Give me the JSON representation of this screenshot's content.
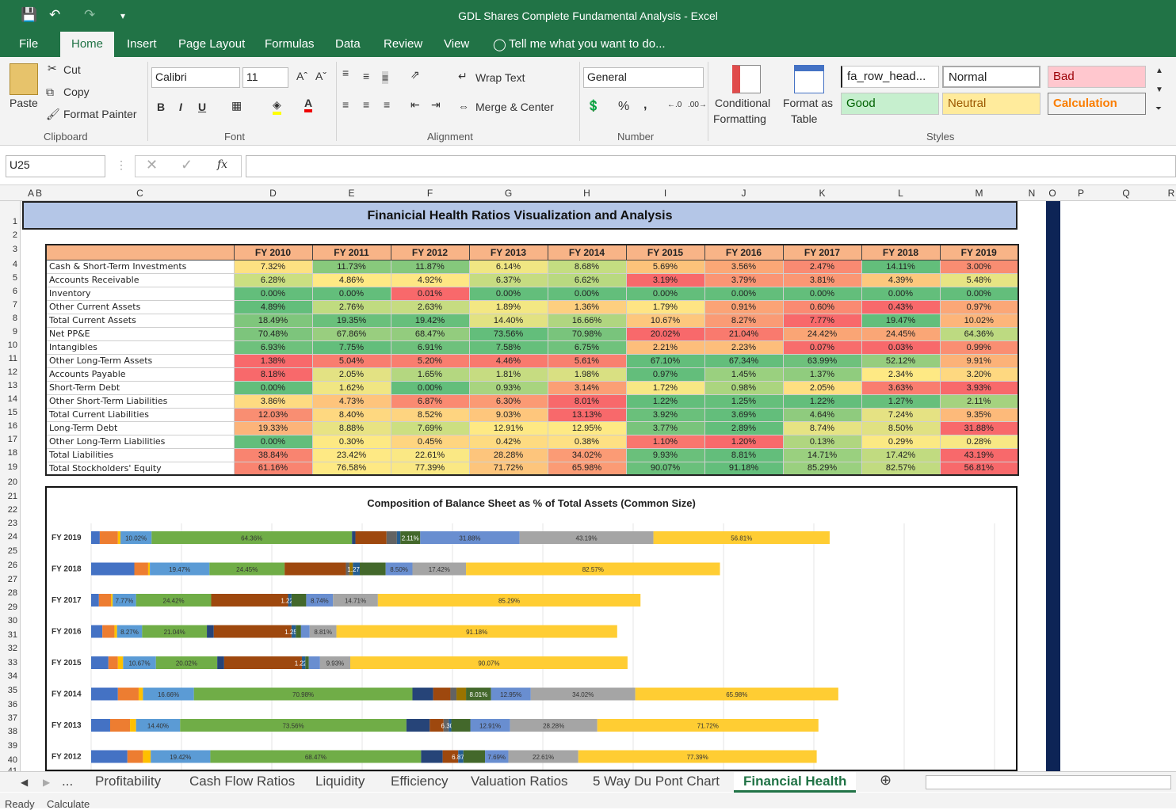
{
  "title": "GDL Shares Complete Fundamental Analysis - Excel",
  "ribbon_tabs": [
    "File",
    "Home",
    "Insert",
    "Page Layout",
    "Formulas",
    "Data",
    "Review",
    "View"
  ],
  "tell_me": "Tell me what you want to do...",
  "clipboard": {
    "paste": "Paste",
    "cut": "Cut",
    "copy": "Copy",
    "format_painter": "Format Painter",
    "group": "Clipboard"
  },
  "font": {
    "name": "Calibri",
    "size": "11",
    "bold": "B",
    "italic": "I",
    "underline": "U",
    "group": "Font"
  },
  "alignment": {
    "wrap": "Wrap Text",
    "merge": "Merge & Center",
    "group": "Alignment"
  },
  "number": {
    "format": "General",
    "percent": "%",
    "comma": ",",
    "group": "Number"
  },
  "styles": {
    "conditional": "Conditional",
    "formatting": "Formatting",
    "format_as": "Format as",
    "table": "Table",
    "cells": [
      "fa_row_head...",
      "Normal",
      "Bad",
      "Good",
      "Neutral",
      "Calculation"
    ],
    "group": "Styles"
  },
  "name_box": "U25",
  "fx": "fx",
  "columns": [
    "A",
    "B",
    "C",
    "D",
    "E",
    "F",
    "G",
    "H",
    "I",
    "J",
    "K",
    "L",
    "M",
    "N",
    "O",
    "P",
    "Q",
    "R"
  ],
  "rows": [
    "1",
    "2",
    "3",
    "4",
    "5",
    "6",
    "7",
    "8",
    "9",
    "10",
    "11",
    "12",
    "13",
    "14",
    "15",
    "16",
    "17",
    "18",
    "19",
    "20",
    "21",
    "22",
    "23",
    "24",
    "25",
    "26",
    "27",
    "28",
    "29",
    "30",
    "31",
    "32",
    "33",
    "34",
    "35",
    "36",
    "37",
    "38",
    "39",
    "40",
    "41"
  ],
  "sheet_title": "Finanicial Health Ratios Visualization and Analysis",
  "table": {
    "years": [
      "FY 2010",
      "FY 2011",
      "FY 2012",
      "FY 2013",
      "FY 2014",
      "FY 2015",
      "FY 2016",
      "FY 2017",
      "FY 2018",
      "FY 2019"
    ],
    "rows": [
      {
        "label": "Cash & Short-Term Investments",
        "values": [
          "7.32%",
          "11.73%",
          "11.87%",
          "6.14%",
          "8.68%",
          "5.69%",
          "3.56%",
          "2.47%",
          "14.11%",
          "3.00%"
        ],
        "colors": [
          "#fde182",
          "#88c97c",
          "#85c87c",
          "#f0e683",
          "#c4dd81",
          "#fcc37a",
          "#fba776",
          "#f98a72",
          "#63be7b",
          "#f98d72"
        ]
      },
      {
        "label": "Accounts Receivable",
        "values": [
          "6.28%",
          "4.86%",
          "4.92%",
          "6.37%",
          "6.62%",
          "3.19%",
          "3.79%",
          "3.81%",
          "4.39%",
          "5.48%"
        ],
        "colors": [
          "#cbdf81",
          "#ffe984",
          "#fee784",
          "#c6dc81",
          "#b9d980",
          "#f8696b",
          "#fa9574",
          "#fa9774",
          "#fdc87d",
          "#e7e483"
        ]
      },
      {
        "label": "Inventory",
        "values": [
          "0.00%",
          "0.00%",
          "0.01%",
          "0.00%",
          "0.00%",
          "0.00%",
          "0.00%",
          "0.00%",
          "0.00%",
          "0.00%"
        ],
        "colors": [
          "#63be7b",
          "#63be7b",
          "#f8696b",
          "#63be7b",
          "#63be7b",
          "#63be7b",
          "#63be7b",
          "#63be7b",
          "#63be7b",
          "#63be7b"
        ]
      },
      {
        "label": "Other Current Assets",
        "values": [
          "4.89%",
          "2.76%",
          "2.63%",
          "1.89%",
          "1.36%",
          "1.79%",
          "0.91%",
          "0.60%",
          "0.43%",
          "0.97%"
        ],
        "colors": [
          "#63be7b",
          "#c0db80",
          "#c6dc81",
          "#f3e783",
          "#fdcf7f",
          "#fee484",
          "#fba376",
          "#fa8a72",
          "#f8696b",
          "#fba777"
        ]
      },
      {
        "label": "Total Current Assets",
        "values": [
          "18.49%",
          "19.35%",
          "19.42%",
          "14.40%",
          "16.66%",
          "10.67%",
          "8.27%",
          "7.77%",
          "19.47%",
          "10.02%"
        ],
        "colors": [
          "#7fc67c",
          "#6ac07b",
          "#67bf7b",
          "#e2e282",
          "#b0d680",
          "#fdc77d",
          "#fa9b75",
          "#f8696b",
          "#63be7b",
          "#fdb57a"
        ]
      },
      {
        "label": "Net PP&E",
        "values": [
          "70.48%",
          "67.86%",
          "68.47%",
          "73.56%",
          "70.98%",
          "20.02%",
          "21.04%",
          "24.42%",
          "24.45%",
          "64.36%"
        ],
        "colors": [
          "#7dc57c",
          "#99ce7f",
          "#93cc7e",
          "#63be7b",
          "#79c47c",
          "#f8696b",
          "#f97a6e",
          "#faa575",
          "#faa676",
          "#bdda81"
        ]
      },
      {
        "label": "Intangibles",
        "values": [
          "6.93%",
          "7.75%",
          "6.91%",
          "7.58%",
          "6.75%",
          "2.21%",
          "2.23%",
          "0.07%",
          "0.03%",
          "0.99%"
        ],
        "colors": [
          "#6ec17c",
          "#63be7b",
          "#6ec17c",
          "#66bf7b",
          "#70c27c",
          "#fdbe7b",
          "#fdbe7b",
          "#f86d6c",
          "#f8696b",
          "#fa8e72"
        ]
      },
      {
        "label": "Other Long-Term Assets",
        "values": [
          "1.38%",
          "5.04%",
          "5.20%",
          "4.46%",
          "5.61%",
          "67.10%",
          "67.34%",
          "63.99%",
          "52.12%",
          "9.91%"
        ],
        "colors": [
          "#f8696b",
          "#f97d6f",
          "#f97e6f",
          "#f9796e",
          "#f9806f",
          "#63be7b",
          "#63be7b",
          "#6ec17c",
          "#96cd7e",
          "#fcb278"
        ]
      },
      {
        "label": "Accounts Payable",
        "values": [
          "8.18%",
          "2.05%",
          "1.65%",
          "1.81%",
          "1.98%",
          "0.97%",
          "1.45%",
          "1.37%",
          "2.34%",
          "3.20%"
        ],
        "colors": [
          "#f8696b",
          "#e3e283",
          "#b4d780",
          "#c6dc81",
          "#d9e082",
          "#63be7b",
          "#9ad07f",
          "#90cc7e",
          "#fee984",
          "#fed880"
        ]
      },
      {
        "label": "Short-Term Debt",
        "values": [
          "0.00%",
          "1.62%",
          "0.00%",
          "0.93%",
          "3.14%",
          "1.72%",
          "0.98%",
          "2.05%",
          "3.63%",
          "3.93%"
        ],
        "colors": [
          "#63be7b",
          "#f0e683",
          "#63be7b",
          "#a8d47f",
          "#fb9f75",
          "#f8e784",
          "#abd57f",
          "#fedf81",
          "#f97d6f",
          "#f8696b"
        ]
      },
      {
        "label": "Other Short-Term Liabilities",
        "values": [
          "3.86%",
          "4.73%",
          "6.87%",
          "6.30%",
          "8.01%",
          "1.22%",
          "1.25%",
          "1.22%",
          "1.27%",
          "2.11%"
        ],
        "colors": [
          "#fedb81",
          "#fec47c",
          "#fa8a71",
          "#fb9a74",
          "#f8696b",
          "#63be7b",
          "#65bf7b",
          "#63be7b",
          "#67bf7b",
          "#a5d27f"
        ]
      },
      {
        "label": "Total Current Liabilities",
        "values": [
          "12.03%",
          "8.40%",
          "8.52%",
          "9.03%",
          "13.13%",
          "3.92%",
          "3.69%",
          "4.64%",
          "7.24%",
          "9.35%"
        ],
        "colors": [
          "#f98e72",
          "#fed880",
          "#fed480",
          "#fec67c",
          "#f8696b",
          "#6ac07b",
          "#63be7b",
          "#8fcb7e",
          "#e5e283",
          "#fdba7a"
        ]
      },
      {
        "label": "Long-Term Debt",
        "values": [
          "19.33%",
          "8.88%",
          "7.69%",
          "12.91%",
          "12.95%",
          "3.77%",
          "2.89%",
          "8.74%",
          "8.50%",
          "31.88%"
        ],
        "colors": [
          "#fcb47a",
          "#e8e383",
          "#ccdf81",
          "#fee984",
          "#fee984",
          "#79c47c",
          "#63be7b",
          "#e6e383",
          "#e0e182",
          "#f8696b"
        ]
      },
      {
        "label": "Other Long-Term Liabilities",
        "values": [
          "0.00%",
          "0.30%",
          "0.45%",
          "0.42%",
          "0.38%",
          "1.10%",
          "1.20%",
          "0.13%",
          "0.29%",
          "0.28%"
        ],
        "colors": [
          "#63be7b",
          "#fde983",
          "#fed580",
          "#fedb81",
          "#fee083",
          "#f9766e",
          "#f8696b",
          "#b0d680",
          "#fbe983",
          "#f8e884"
        ]
      },
      {
        "label": "Total Liabilities",
        "values": [
          "38.84%",
          "23.42%",
          "22.61%",
          "28.28%",
          "34.02%",
          "9.93%",
          "8.81%",
          "14.71%",
          "17.42%",
          "43.19%"
        ],
        "colors": [
          "#f98470",
          "#fee984",
          "#fae884",
          "#fdc57c",
          "#fb9b75",
          "#6ac07b",
          "#63be7b",
          "#9ad07f",
          "#c1db80",
          "#f8696b"
        ]
      },
      {
        "label": "Total Stockholders' Equity",
        "values": [
          "61.16%",
          "76.58%",
          "77.39%",
          "71.72%",
          "65.98%",
          "90.07%",
          "91.18%",
          "85.29%",
          "82.57%",
          "56.81%"
        ],
        "colors": [
          "#f98470",
          "#fee984",
          "#fae884",
          "#fdc57c",
          "#fb9b75",
          "#6ac07b",
          "#63be7b",
          "#9ad07f",
          "#c1db80",
          "#f8696b"
        ]
      }
    ]
  },
  "chart_data": {
    "type": "bar",
    "orientation": "horizontal stacked",
    "title": "Composition of Balance Sheet as % of Total Assets (Common Size)",
    "categories": [
      "FY 2019",
      "FY 2018",
      "FY 2017",
      "FY 2016",
      "FY 2015",
      "FY 2014",
      "FY 2013",
      "FY 2012"
    ],
    "series_colors": [
      "#4472c4",
      "#ed7d31",
      "#ffc000",
      "#5b9bd5",
      "#70ad47",
      "#264478",
      "#9e480e",
      "#636363",
      "#997300",
      "#255e91",
      "#43682b",
      "#698ed0",
      "#a5a5a5",
      "#ffcd33"
    ],
    "rows": [
      {
        "segments": [
          1.0,
          2.1,
          0.3,
          3.6,
          23.2,
          0.4,
          3.6,
          1.2,
          0,
          0.4,
          2.3,
          11.5,
          15.5,
          20.4
        ],
        "labels": [
          "",
          "",
          "",
          "10.02%",
          "64.36%",
          "",
          "",
          "",
          "",
          "",
          "2.11%",
          "31.88%",
          "43.19%",
          "56.81%"
        ]
      },
      {
        "segments": [
          5.0,
          1.6,
          0.2,
          6.9,
          8.7,
          0,
          7.1,
          0.4,
          0.4,
          0.8,
          3.0,
          3.1,
          6.2,
          29.4
        ],
        "labels": [
          "",
          "",
          "",
          "19.47%",
          "24.45%",
          "",
          "",
          "",
          "",
          "1.27%",
          "",
          "8.50%",
          "17.42%",
          "82.57%"
        ]
      },
      {
        "segments": [
          0.9,
          1.4,
          0.2,
          2.7,
          8.7,
          0,
          8.9,
          0,
          0,
          0.4,
          1.7,
          3.1,
          5.2,
          30.4
        ],
        "labels": [
          "",
          "",
          "",
          "7.77%",
          "24.42%",
          "",
          "",
          "",
          "",
          "1.22%",
          "",
          "8.74%",
          "14.71%",
          "85.29%"
        ]
      },
      {
        "segments": [
          1.3,
          1.4,
          0.3,
          2.9,
          7.5,
          0.8,
          9.0,
          0,
          0,
          0.5,
          0.6,
          1.0,
          3.1,
          32.5
        ],
        "labels": [
          "",
          "",
          "",
          "8.27%",
          "21.04%",
          "",
          "",
          "",
          "",
          "1.25%",
          "",
          "",
          "8.81%",
          "91.18%"
        ]
      },
      {
        "segments": [
          2.0,
          1.1,
          0.6,
          3.8,
          7.1,
          0.8,
          9.0,
          0,
          0,
          0.4,
          0.4,
          1.3,
          3.5,
          32.1
        ],
        "labels": [
          "",
          "",
          "",
          "10.67%",
          "20.02%",
          "",
          "",
          "",
          "",
          "1.22%",
          "",
          "",
          "9.93%",
          "90.07%"
        ]
      },
      {
        "segments": [
          3.1,
          2.4,
          0.5,
          5.9,
          25.3,
          2.4,
          2.0,
          0.7,
          1.1,
          0,
          2.9,
          4.6,
          12.1,
          23.5
        ],
        "labels": [
          "",
          "",
          "",
          "16.66%",
          "70.98%",
          "",
          "",
          "",
          "",
          "",
          "8.01%",
          "12.95%",
          "34.02%",
          "65.98%"
        ]
      },
      {
        "segments": [
          2.2,
          2.3,
          0.7,
          5.1,
          26.2,
          2.7,
          1.6,
          0.6,
          0,
          0.3,
          2.2,
          4.6,
          10.1,
          25.6
        ],
        "labels": [
          "",
          "",
          "",
          "14.40%",
          "73.56%",
          "",
          "",
          "",
          "",
          "6.30%",
          "",
          "12.91%",
          "28.28%",
          "71.72%"
        ]
      },
      {
        "segments": [
          4.2,
          1.8,
          0.9,
          6.9,
          24.4,
          2.5,
          1.8,
          0,
          0,
          0.6,
          2.5,
          2.7,
          8.1,
          27.6
        ],
        "labels": [
          "",
          "",
          "",
          "19.42%",
          "68.47%",
          "",
          "",
          "",
          "",
          "6.87%",
          "",
          "7.69%",
          "22.61%",
          "77.39%"
        ]
      }
    ]
  },
  "sheet_tabs": [
    "...",
    "Profitability",
    "Cash Flow Ratios",
    "Liquidity",
    "Efficiency",
    "Valuation Ratios",
    "5 Way Du Pont Chart",
    "Financial Health"
  ],
  "status": {
    "ready": "Ready",
    "calculate": "Calculate"
  }
}
